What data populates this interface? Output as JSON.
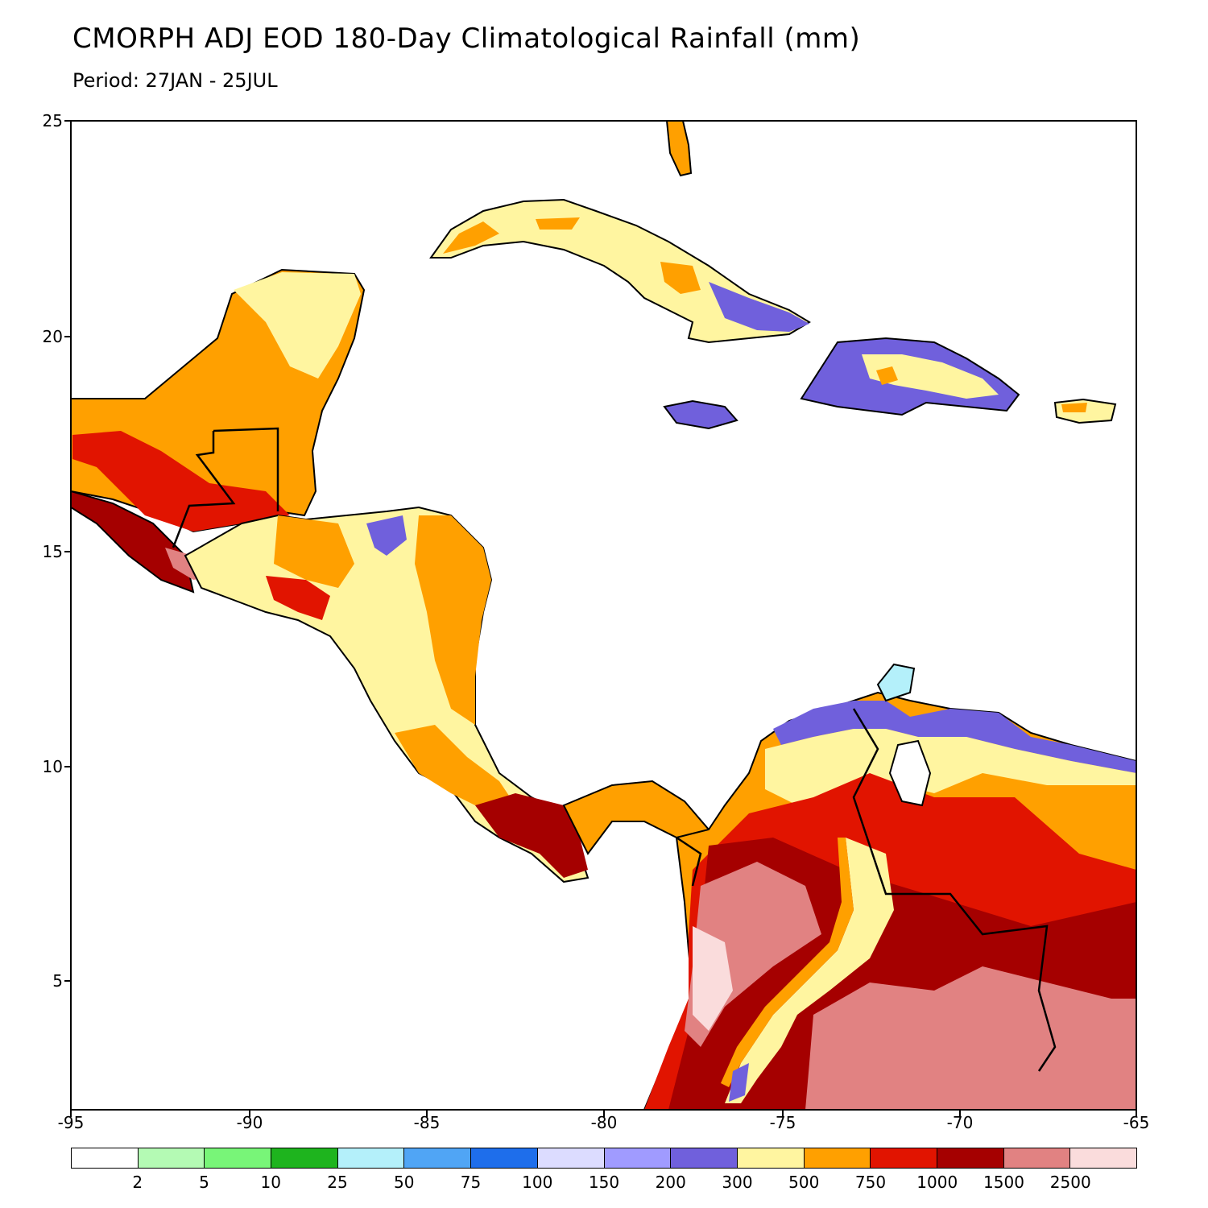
{
  "header": {
    "title": "CMORPH ADJ EOD 180-Day Climatological Rainfall (mm)",
    "subtitle": "Period: 27JAN - 25JUL"
  },
  "map": {
    "region": "Central America and Caribbean",
    "lon_range": [
      -95,
      -65
    ],
    "lat_range": [
      2,
      25
    ]
  },
  "axes": {
    "x_ticks": [
      "-95",
      "-90",
      "-85",
      "-80",
      "-75",
      "-70",
      "-65"
    ],
    "y_ticks": [
      "25",
      "20",
      "15",
      "10",
      "5"
    ]
  },
  "legend": {
    "colors": [
      "#ffffff",
      "#b4fab4",
      "#78f578",
      "#1eb41e",
      "#b4f0fa",
      "#50a5f5",
      "#1e6eeb",
      "#dcdcff",
      "#a09bff",
      "#7060dc",
      "#fff5a0",
      "#ffa000",
      "#e11400",
      "#a50000",
      "#e18282",
      "#fadcdc"
    ],
    "labels": [
      "2",
      "5",
      "10",
      "25",
      "50",
      "75",
      "100",
      "150",
      "200",
      "300",
      "500",
      "750",
      "1000",
      "1500",
      "2500"
    ]
  }
}
